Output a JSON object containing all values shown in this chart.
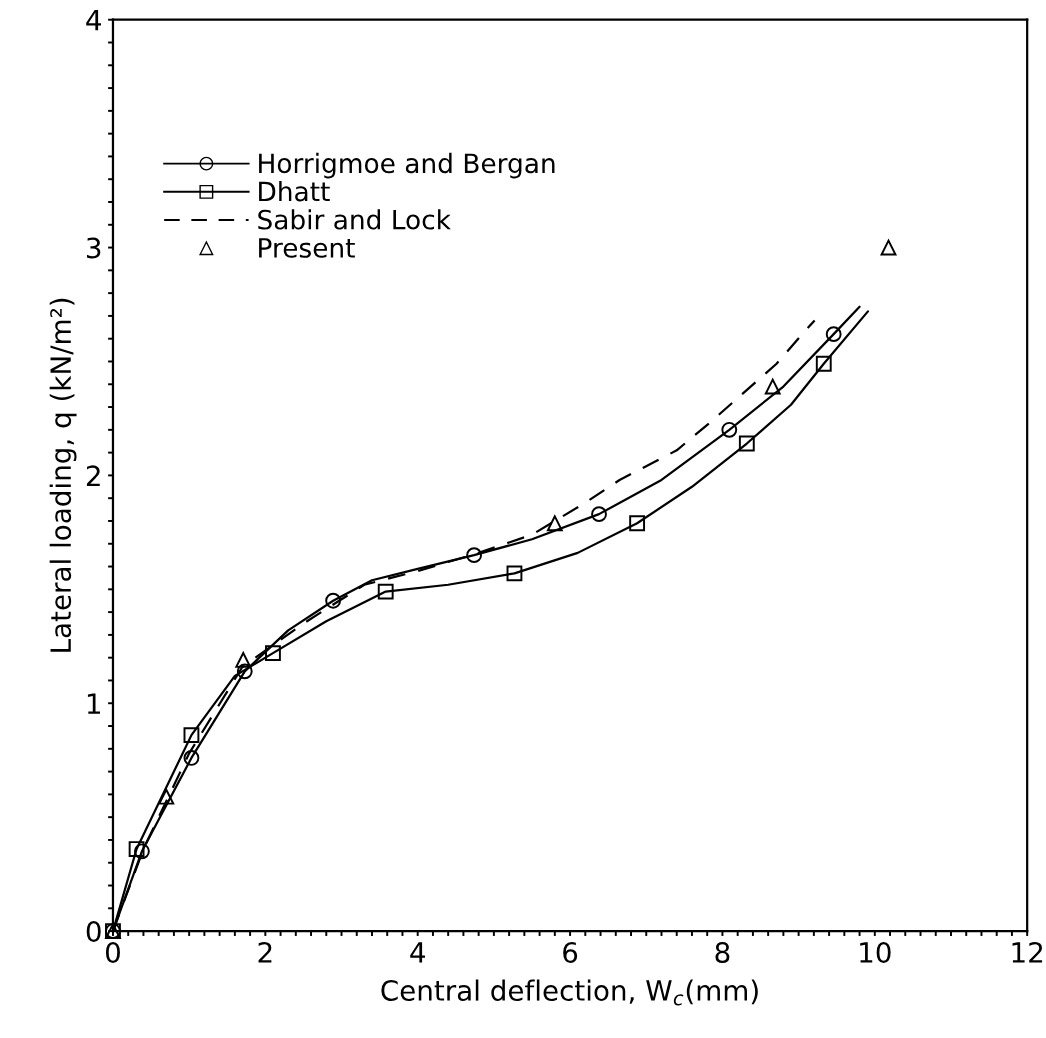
{
  "chart_data": {
    "type": "line",
    "xlabel": "Central deflection, W$_{c}$(mm)",
    "ylabel": "Lateral loading, q (kN/m²)",
    "xlim": [
      0,
      12
    ],
    "ylim": [
      0,
      4
    ],
    "xticks": [
      0,
      {
        "value": 0.2,
        "label": null
      },
      {
        "value": 0.4,
        "label": null
      },
      {
        "value": 0.6,
        "label": null
      },
      {
        "value": 0.8,
        "label": null
      },
      {
        "value": 1,
        "label": null
      },
      {
        "value": 1.2,
        "label": null
      },
      {
        "value": 1.4,
        "label": null
      },
      {
        "value": 1.6,
        "label": null
      },
      {
        "value": 1.8,
        "label": null
      },
      2,
      {
        "value": 2.2,
        "label": null
      },
      {
        "value": 2.4,
        "label": null
      },
      {
        "value": 2.6,
        "label": null
      },
      {
        "value": 2.8,
        "label": null
      },
      {
        "value": 3,
        "label": null
      },
      {
        "value": 3.2,
        "label": null
      },
      {
        "value": 3.4,
        "label": null
      },
      {
        "value": 3.6,
        "label": null
      },
      {
        "value": 3.8,
        "label": null
      },
      4,
      {
        "value": 4.2,
        "label": null
      },
      {
        "value": 4.4,
        "label": null
      },
      {
        "value": 4.6,
        "label": null
      },
      {
        "value": 4.8,
        "label": null
      },
      {
        "value": 5,
        "label": null
      },
      {
        "value": 5.2,
        "label": null
      },
      {
        "value": 5.4,
        "label": null
      },
      {
        "value": 5.6,
        "label": null
      },
      {
        "value": 5.8,
        "label": null
      },
      6,
      {
        "value": 6.2,
        "label": null
      },
      {
        "value": 6.4,
        "label": null
      },
      {
        "value": 6.6,
        "label": null
      },
      {
        "value": 6.8,
        "label": null
      },
      {
        "value": 7,
        "label": null
      },
      {
        "value": 7.2,
        "label": null
      },
      {
        "value": 7.4,
        "label": null
      },
      {
        "value": 7.6,
        "label": null
      },
      {
        "value": 7.8,
        "label": null
      },
      8,
      {
        "value": 8.2,
        "label": null
      },
      {
        "value": 8.4,
        "label": null
      },
      {
        "value": 8.6,
        "label": null
      },
      {
        "value": 8.8,
        "label": null
      },
      {
        "value": 9,
        "label": null
      },
      {
        "value": 9.2,
        "label": null
      },
      {
        "value": 9.4,
        "label": null
      },
      {
        "value": 9.6,
        "label": null
      },
      {
        "value": 9.8,
        "label": null
      },
      10,
      {
        "value": 10.2,
        "label": null
      },
      {
        "value": 10.4,
        "label": null
      },
      {
        "value": 10.6,
        "label": null
      },
      {
        "value": 10.8,
        "label": null
      },
      {
        "value": 11,
        "label": null
      },
      {
        "value": 11.2,
        "label": null
      },
      {
        "value": 11.4,
        "label": null
      },
      {
        "value": 11.6,
        "label": null
      },
      {
        "value": 11.8,
        "label": null
      },
      12
    ],
    "yticks": [
      0,
      {
        "value": 0.1,
        "label": null
      },
      {
        "value": 0.2,
        "label": null
      },
      {
        "value": 0.3,
        "label": null
      },
      {
        "value": 0.4,
        "label": null
      },
      {
        "value": 0.5,
        "label": null
      },
      {
        "value": 0.6,
        "label": null
      },
      {
        "value": 0.7,
        "label": null
      },
      {
        "value": 0.8,
        "label": null
      },
      {
        "value": 0.9,
        "label": null
      },
      1,
      {
        "value": 1.1,
        "label": null
      },
      {
        "value": 1.2,
        "label": null
      },
      {
        "value": 1.3,
        "label": null
      },
      {
        "value": 1.4,
        "label": null
      },
      {
        "value": 1.5,
        "label": null
      },
      {
        "value": 1.6,
        "label": null
      },
      {
        "value": 1.7,
        "label": null
      },
      {
        "value": 1.8,
        "label": null
      },
      {
        "value": 1.9,
        "label": null
      },
      2,
      {
        "value": 2.1,
        "label": null
      },
      {
        "value": 2.2,
        "label": null
      },
      {
        "value": 2.3,
        "label": null
      },
      {
        "value": 2.4,
        "label": null
      },
      {
        "value": 2.5,
        "label": null
      },
      {
        "value": 2.6,
        "label": null
      },
      {
        "value": 2.7,
        "label": null
      },
      {
        "value": 2.8,
        "label": null
      },
      {
        "value": 2.9,
        "label": null
      },
      3,
      {
        "value": 3.1,
        "label": null
      },
      {
        "value": 3.2,
        "label": null
      },
      {
        "value": 3.3,
        "label": null
      },
      {
        "value": 3.4,
        "label": null
      },
      {
        "value": 3.5,
        "label": null
      },
      {
        "value": 3.6,
        "label": null
      },
      {
        "value": 3.7,
        "label": null
      },
      {
        "value": 3.8,
        "label": null
      },
      {
        "value": 3.9,
        "label": null
      },
      4
    ],
    "grid": false,
    "legend": "top left",
    "series": [
      {
        "color": "#000000",
        "line_style": "solid",
        "marker": "none",
        "x": [
          0,
          0.38,
          1.03,
          1.73,
          2.3,
          2.89,
          3.4,
          4.0,
          4.74,
          5.5,
          6.38,
          7.2,
          8.09,
          8.8,
          9.46,
          9.8
        ],
        "values": [
          0,
          0.35,
          0.76,
          1.14,
          1.32,
          1.45,
          1.54,
          1.59,
          1.65,
          1.72,
          1.83,
          1.98,
          2.2,
          2.39,
          2.62,
          2.74
        ]
      },
      {
        "color": "#000000",
        "line_style": "solid",
        "marker": "none",
        "x": [
          0,
          0.31,
          1.03,
          1.6,
          2.1,
          2.8,
          3.58,
          4.4,
          5.27,
          6.1,
          6.88,
          7.6,
          8.32,
          8.9,
          9.33,
          9.91
        ],
        "values": [
          0,
          0.36,
          0.86,
          1.12,
          1.22,
          1.36,
          1.49,
          1.52,
          1.57,
          1.66,
          1.79,
          1.95,
          2.14,
          2.31,
          2.49,
          2.72
        ]
      },
      {
        "type": "scatter",
        "name": "Horrigmoe and Bergan",
        "color": "#000000",
        "marker": "circle",
        "line_style": "solid",
        "x": [
          0,
          0.38,
          1.03,
          1.73,
          2.89,
          4.74,
          6.38,
          8.09,
          9.46
        ],
        "values": [
          0,
          0.35,
          0.76,
          1.14,
          1.45,
          1.65,
          1.83,
          2.2,
          2.62
        ]
      },
      {
        "type": "scatter",
        "name": "Dhatt",
        "color": "#000000",
        "marker": "square",
        "line_style": "solid",
        "x": [
          0,
          0.31,
          1.03,
          2.1,
          3.58,
          5.27,
          6.88,
          8.32,
          9.33
        ],
        "values": [
          0,
          0.36,
          0.86,
          1.22,
          1.49,
          1.57,
          1.79,
          2.14,
          2.49
        ]
      },
      {
        "type": "line",
        "name": "Sabir and Lock",
        "color": "#000000",
        "line_style": "dashed",
        "marker": "none",
        "x": [
          0,
          0.4,
          1.0,
          1.7,
          2.5,
          3.3,
          4.0,
          4.8,
          5.5,
          6.2,
          6.65,
          7.4,
          7.83,
          8.27,
          8.71,
          9.1,
          9.21
        ],
        "values": [
          0,
          0.36,
          0.78,
          1.16,
          1.35,
          1.52,
          1.58,
          1.66,
          1.74,
          1.88,
          1.98,
          2.11,
          2.23,
          2.36,
          2.49,
          2.64,
          2.68
        ]
      },
      {
        "type": "scatter",
        "name": "Present",
        "color": "#000000",
        "marker": "triangle",
        "x": [
          0,
          0.7,
          1.71,
          5.8,
          8.66,
          10.18
        ],
        "values": [
          0,
          0.59,
          1.19,
          1.79,
          2.39,
          3.0
        ]
      }
    ]
  }
}
